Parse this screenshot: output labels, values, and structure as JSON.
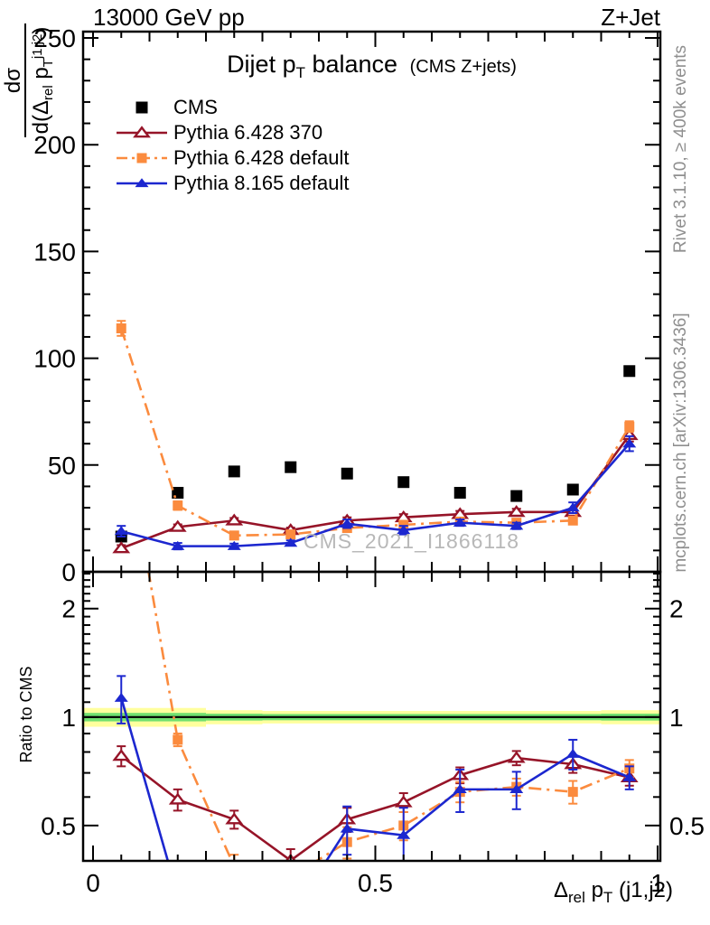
{
  "page": {
    "top_left_label": "13000 GeV pp",
    "top_right_label": "Z+Jet",
    "watermark": "CMS_2021_I1866118",
    "right_label_top": "Rivet 3.1.10, ≥ 400k events",
    "right_label_bottom": "mcplots.cern.ch [arXiv:1306.3436]"
  },
  "labels": {
    "panel_title": {
      "pre": "Dijet p",
      "sub": "T",
      "post": " balance",
      "suffix": "(CMS Z+jets)"
    },
    "xlabel": {
      "pre": "Δ",
      "sub1": "rel",
      "mid": " p",
      "sub2": "T",
      "post": " (j1,j2)"
    },
    "ylabel_main": {
      "numerator": "dσ",
      "den_pre": "d(Δ",
      "den_sub1": "rel",
      "den_mid": " p",
      "den_sub2": "T",
      "den_sup": "j1,j2",
      "den_post": ")"
    },
    "ylabel_ratio": "Ratio to CMS"
  },
  "chart_data": {
    "type": "line",
    "title": "Dijet pT balance (CMS Z+jets)",
    "xlabel": "Delta_rel pT (j1,j2)",
    "ylabel": "dsigma/d(Delta_rel pT^j1,j2)",
    "ratio_label": "Ratio to CMS",
    "x": [
      0.05,
      0.15,
      0.25,
      0.35,
      0.45,
      0.55,
      0.65,
      0.75,
      0.85,
      0.95
    ],
    "axes": {
      "xlim": [
        0,
        1
      ],
      "x_major": [
        0,
        0.5,
        1
      ],
      "x_major_labels": [
        "0",
        "0.5",
        "1"
      ],
      "x_medium_step": 0.1,
      "x_minor_step": 0.05,
      "main_ylim": [
        0,
        253
      ],
      "main_major": [
        0,
        50,
        100,
        150,
        200,
        250
      ],
      "main_major_labels": [
        "0",
        "50",
        "100",
        "150",
        "200",
        "250"
      ],
      "main_minor_step": 10,
      "ratio_scale": "log",
      "ratio_ylim": [
        0.399,
        2.53
      ],
      "ratio_major": [
        0.5,
        1,
        2
      ],
      "ratio_major_labels": [
        "0.5",
        "1",
        "2"
      ],
      "ratio_minor": [
        0.4,
        0.6,
        0.7,
        0.8,
        0.9,
        1.1,
        1.2,
        1.3,
        1.4,
        1.5,
        1.6,
        1.7,
        1.8,
        1.9,
        2.1,
        2.2,
        2.3,
        2.4,
        2.5
      ]
    },
    "series": [
      {
        "name": "CMS",
        "color": "#000000",
        "marker": "square",
        "marker_filled": true,
        "marker_size": 13,
        "line": "none",
        "show_in_ratio": false,
        "values": [
          16.5,
          37,
          47,
          49,
          46,
          42,
          37,
          35.5,
          38.5,
          94
        ],
        "main_err": [
          0,
          0,
          0,
          0,
          0,
          0,
          0,
          0,
          0,
          0
        ],
        "ratio": [
          1,
          1,
          1,
          1,
          1,
          1,
          1,
          1,
          1,
          1
        ],
        "ratio_err": [
          0,
          0,
          0,
          0,
          0,
          0,
          0,
          0,
          0,
          0
        ]
      },
      {
        "name": "Pythia 6.428 370",
        "color": "#961428",
        "marker": "triangle",
        "marker_filled": false,
        "marker_size": 15,
        "line": "solid",
        "show_in_ratio": true,
        "values": [
          11,
          21,
          24,
          19.5,
          24,
          25.5,
          27,
          28,
          28,
          64
        ],
        "main_err": [
          1.5,
          1.2,
          1.2,
          1.2,
          1.5,
          1.5,
          1.5,
          1.5,
          1.5,
          3
        ],
        "ratio": [
          0.78,
          0.59,
          0.52,
          0.4,
          0.52,
          0.58,
          0.69,
          0.77,
          0.74,
          0.68
        ],
        "ratio_err": [
          0.05,
          0.04,
          0.03,
          0.03,
          0.04,
          0.035,
          0.035,
          0.035,
          0.04,
          0.035
        ]
      },
      {
        "name": "Pythia 6.428 default",
        "color": "#fb8b3e",
        "marker": "square",
        "marker_filled": true,
        "marker_size": 11,
        "line": "dashdot",
        "show_in_ratio": true,
        "values": [
          114,
          31,
          17,
          17.5,
          20.5,
          22,
          23.5,
          23,
          24,
          68
        ],
        "main_err": [
          3.5,
          2,
          1.2,
          1.2,
          1.5,
          1.5,
          1.5,
          1.5,
          1.5,
          2.5
        ],
        "ratio": [
          6.9,
          0.865,
          0.385,
          0.36,
          0.45,
          0.5,
          0.62,
          0.64,
          0.62,
          0.72
        ],
        "ratio_err": [
          0.3,
          0.035,
          0.03,
          0.03,
          0.045,
          0.045,
          0.04,
          0.035,
          0.045,
          0.04
        ]
      },
      {
        "name": "Pythia 8.165 default",
        "color": "#1c27cf",
        "marker": "triangle",
        "marker_filled": true,
        "marker_size": 15,
        "line": "solid",
        "show_in_ratio": true,
        "values": [
          19,
          12,
          12,
          13.5,
          22.5,
          19.5,
          23,
          21.5,
          30,
          60
        ],
        "main_err": [
          2.5,
          1.5,
          1.2,
          1.2,
          2,
          2,
          1.5,
          1.5,
          2.5,
          3.5
        ],
        "ratio": [
          1.13,
          0.32,
          0.26,
          0.28,
          0.49,
          0.47,
          0.63,
          0.63,
          0.79,
          0.68
        ],
        "ratio_err": [
          0.17,
          0.05,
          0.04,
          0.04,
          0.075,
          0.09,
          0.085,
          0.075,
          0.075,
          0.05
        ]
      }
    ],
    "band": {
      "bin_edges": [
        0,
        0.1,
        0.2,
        0.3,
        0.4,
        0.5,
        0.6,
        0.7,
        0.8,
        0.9,
        1.0
      ],
      "yellow_halfwidth": [
        0.06,
        0.06,
        0.045,
        0.04,
        0.04,
        0.04,
        0.04,
        0.04,
        0.04,
        0.045
      ],
      "green_halfwidth": [
        0.027,
        0.027,
        0.022,
        0.02,
        0.02,
        0.02,
        0.02,
        0.02,
        0.02,
        0.022
      ],
      "yellow_color": "#ffff9e",
      "green_color": "#70e070",
      "center_value": 1
    },
    "legend_position": "top-left",
    "grid": false
  }
}
